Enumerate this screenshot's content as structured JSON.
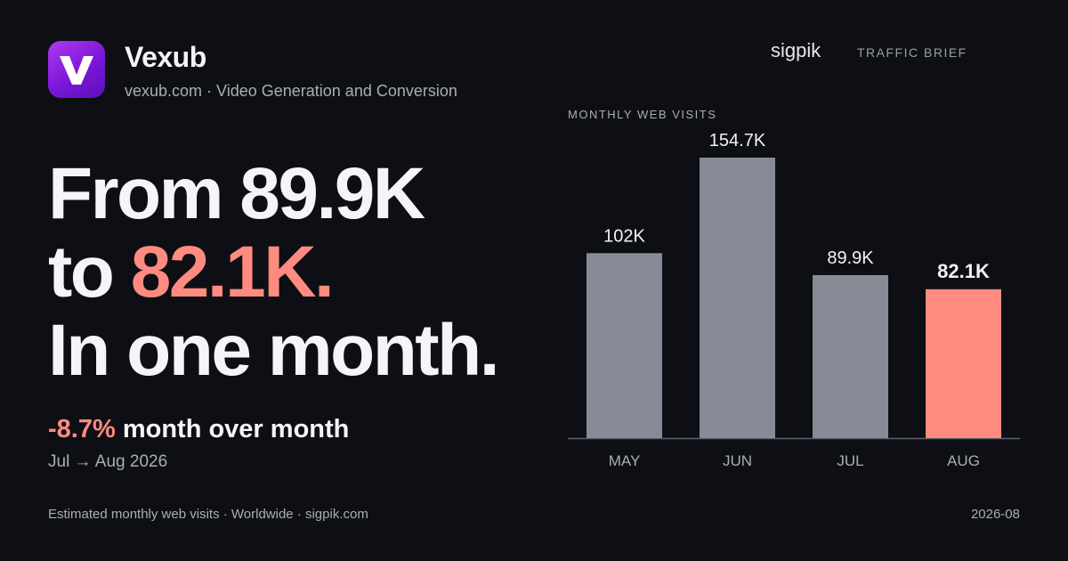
{
  "brand": {
    "name": "Vexub",
    "subtitle": "vexub.com · Video Generation and Conversion",
    "logo_icon": "v-logo-icon",
    "logo_letter": "V"
  },
  "header": {
    "site": "sigpik",
    "label": "TRAFFIC BRIEF"
  },
  "headline": {
    "line1": "From 89.9K",
    "line2_prefix": "to ",
    "line2_value": "82.1K.",
    "line3": "In one month."
  },
  "change": {
    "value": "-8.7%",
    "text": " month over month"
  },
  "period": "Jul → Aug 2026",
  "footer": {
    "left": "Estimated monthly web visits · Worldwide · sigpik.com",
    "right": "2026-08"
  },
  "colors": {
    "accent": "#ff8a80",
    "bar": "#878b96",
    "background": "#0d0f14"
  },
  "chart_data": {
    "type": "bar",
    "title": "MONTHLY WEB VISITS",
    "categories": [
      "MAY",
      "JUN",
      "JUL",
      "AUG"
    ],
    "values": [
      102000,
      154700,
      89900,
      82100
    ],
    "value_labels": [
      "102K",
      "154.7K",
      "89.9K",
      "82.1K"
    ],
    "highlight_index": 3,
    "ylim": [
      0,
      154700
    ],
    "grid": false,
    "legend": "none"
  }
}
